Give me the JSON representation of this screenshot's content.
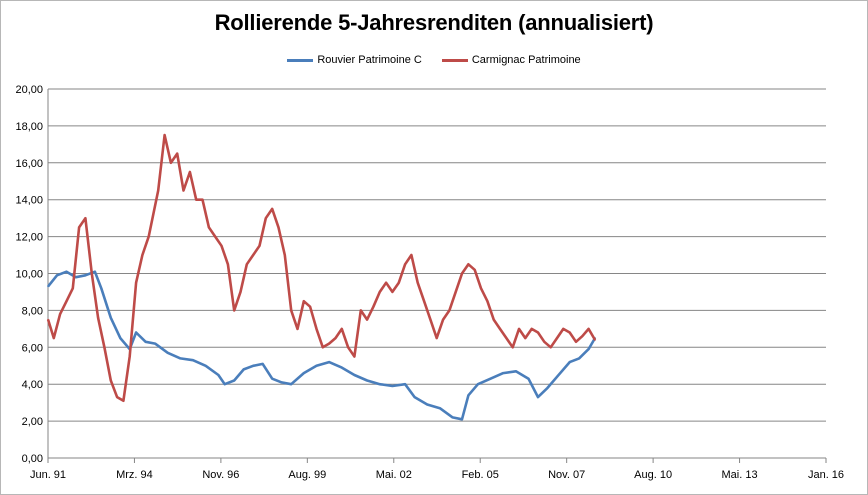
{
  "chart_data": {
    "type": "line",
    "title": "Rollierende 5-Jahresrenditen (annualisiert)",
    "xlabel": "",
    "ylabel": "",
    "ylim": [
      0,
      20
    ],
    "ytick_step": 2,
    "ytick_labels": [
      "0,00",
      "2,00",
      "4,00",
      "6,00",
      "8,00",
      "10,00",
      "12,00",
      "14,00",
      "16,00",
      "18,00",
      "20,00"
    ],
    "x_range": [
      1991.417,
      2016.0
    ],
    "xtick_labels": [
      "Jun. 91",
      "Mrz. 94",
      "Nov. 96",
      "Aug. 99",
      "Mai. 02",
      "Feb. 05",
      "Nov. 07",
      "Aug. 10",
      "Mai. 13",
      "Jan. 16"
    ],
    "grid": "horizontal",
    "legend": "top-center",
    "series": [
      {
        "name": "Rouvier Patrimoine C",
        "color": "#4a7ebb",
        "x": [
          1991.42,
          1991.7,
          1992.0,
          1992.3,
          1992.6,
          1992.9,
          1993.1,
          1993.4,
          1993.7,
          1994.0,
          1994.2,
          1994.5,
          1994.8,
          1995.2,
          1995.6,
          1996.0,
          1996.4,
          1996.8,
          1997.0,
          1997.3,
          1997.6,
          1997.9,
          1998.2,
          1998.5,
          1998.8,
          1999.1,
          1999.5,
          1999.9,
          2000.3,
          2000.7,
          2001.1,
          2001.5,
          2001.9,
          2002.3,
          2002.7,
          2003.0,
          2003.4,
          2003.8,
          2004.2,
          2004.5,
          2004.7,
          2005.0,
          2005.4,
          2005.8,
          2006.2,
          2006.6,
          2006.9,
          2007.2,
          2007.5,
          2007.9,
          2008.2,
          2008.5,
          2008.7
        ],
        "values": [
          9.3,
          9.9,
          10.1,
          9.8,
          9.9,
          10.1,
          9.2,
          7.6,
          6.5,
          5.9,
          6.8,
          6.3,
          6.2,
          5.7,
          5.4,
          5.3,
          5.0,
          4.5,
          4.0,
          4.2,
          4.8,
          5.0,
          5.1,
          4.3,
          4.1,
          4.0,
          4.6,
          5.0,
          5.2,
          4.9,
          4.5,
          4.2,
          4.0,
          3.9,
          4.0,
          3.3,
          2.9,
          2.7,
          2.2,
          2.1,
          3.4,
          4.0,
          4.3,
          4.6,
          4.7,
          4.3,
          3.3,
          3.8,
          4.4,
          5.2,
          5.4,
          5.9,
          6.5
        ]
      },
      {
        "name": "Carmignac Patrimoine",
        "color": "#be4b48",
        "x": [
          1991.42,
          1991.6,
          1991.8,
          1992.0,
          1992.2,
          1992.4,
          1992.6,
          1992.8,
          1993.0,
          1993.2,
          1993.4,
          1993.6,
          1993.8,
          1994.0,
          1994.2,
          1994.4,
          1994.6,
          1994.9,
          1995.1,
          1995.3,
          1995.5,
          1995.7,
          1995.9,
          1996.1,
          1996.3,
          1996.5,
          1996.7,
          1996.9,
          1997.1,
          1997.3,
          1997.5,
          1997.7,
          1997.9,
          1998.1,
          1998.3,
          1998.5,
          1998.7,
          1998.9,
          1999.1,
          1999.3,
          1999.5,
          1999.7,
          1999.9,
          2000.1,
          2000.3,
          2000.5,
          2000.7,
          2000.9,
          2001.1,
          2001.3,
          2001.5,
          2001.7,
          2001.9,
          2002.1,
          2002.3,
          2002.5,
          2002.7,
          2002.9,
          2003.1,
          2003.3,
          2003.5,
          2003.7,
          2003.9,
          2004.1,
          2004.3,
          2004.5,
          2004.7,
          2004.9,
          2005.1,
          2005.3,
          2005.5,
          2005.7,
          2005.9,
          2006.1,
          2006.3,
          2006.5,
          2006.7,
          2006.9,
          2007.1,
          2007.3,
          2007.5,
          2007.7,
          2007.9,
          2008.1,
          2008.3,
          2008.5,
          2008.7
        ],
        "values": [
          7.5,
          6.5,
          7.8,
          8.5,
          9.2,
          12.5,
          13.0,
          10.0,
          7.6,
          6.0,
          4.2,
          3.3,
          3.1,
          5.5,
          9.5,
          11.0,
          12.0,
          14.5,
          17.5,
          16.0,
          16.5,
          14.5,
          15.5,
          14.0,
          14.0,
          12.5,
          12.0,
          11.5,
          10.5,
          8.0,
          9.0,
          10.5,
          11.0,
          11.5,
          13.0,
          13.5,
          12.5,
          11.0,
          8.0,
          7.0,
          8.5,
          8.2,
          7.0,
          6.0,
          6.2,
          6.5,
          7.0,
          6.0,
          5.5,
          8.0,
          7.5,
          8.2,
          9.0,
          9.5,
          9.0,
          9.5,
          10.5,
          11.0,
          9.5,
          8.5,
          7.5,
          6.5,
          7.5,
          8.0,
          9.0,
          10.0,
          10.5,
          10.2,
          9.2,
          8.5,
          7.5,
          7.0,
          6.5,
          6.0,
          7.0,
          6.5,
          7.0,
          6.8,
          6.3,
          6.0,
          6.5,
          7.0,
          6.8,
          6.3,
          6.6,
          7.0,
          6.4
        ]
      }
    ]
  }
}
